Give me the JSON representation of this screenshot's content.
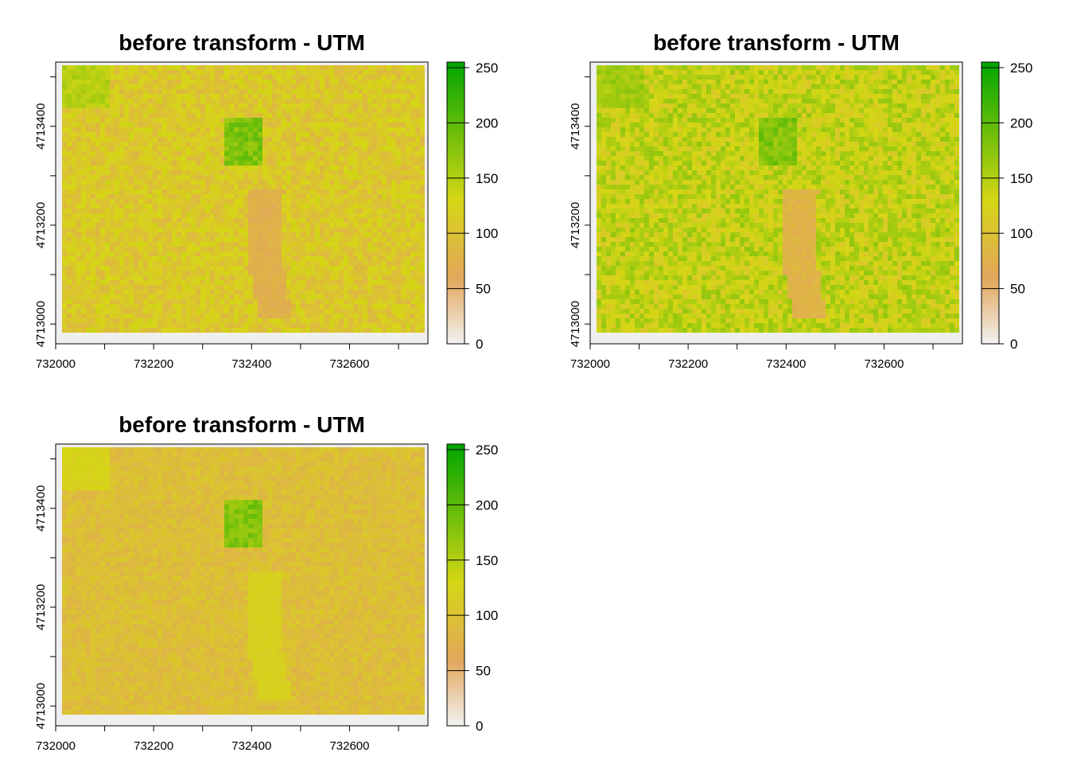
{
  "chart_data": [
    {
      "type": "heatmap",
      "title": "before transform - UTM",
      "xlabel": "",
      "ylabel": "",
      "xlim": [
        732000,
        732760
      ],
      "ylim": [
        4712960,
        4713530
      ],
      "x_ticks": [
        "732000",
        "732200",
        "732400",
        "732600"
      ],
      "y_ticks": [
        "4713000",
        "4713200",
        "4713400"
      ],
      "colorbar": {
        "range": [
          0,
          255
        ],
        "ticks": [
          "0",
          "50",
          "100",
          "150",
          "200",
          "250"
        ]
      },
      "value_summary": {
        "typical": 110,
        "spread": 25,
        "bright_corner": 150,
        "dark_patch_near_x": 732450,
        "dark_patch_value": 75
      },
      "colors": {
        "low": "#f2f2f2",
        "mid": "#e2a65b",
        "high_mid": "#d6d615",
        "high": "#00a600"
      }
    },
    {
      "type": "heatmap",
      "title": "before transform - UTM",
      "xlabel": "",
      "ylabel": "",
      "xlim": [
        732000,
        732760
      ],
      "ylim": [
        4712960,
        4713530
      ],
      "x_ticks": [
        "732000",
        "732200",
        "732400",
        "732600"
      ],
      "y_ticks": [
        "4713000",
        "4713200",
        "4713400"
      ],
      "colorbar": {
        "range": [
          0,
          255
        ],
        "ticks": [
          "0",
          "50",
          "100",
          "150",
          "200",
          "250"
        ]
      },
      "value_summary": {
        "typical": 140,
        "spread": 30,
        "bright_corner": 160,
        "dark_patch_near_x": 732450,
        "dark_patch_value": 80
      },
      "colors": {
        "low": "#f2f2f2",
        "mid": "#e2a65b",
        "high_mid": "#d6d615",
        "high": "#00a600"
      }
    },
    {
      "type": "heatmap",
      "title": "before transform - UTM",
      "xlabel": "",
      "ylabel": "",
      "xlim": [
        732000,
        732760
      ],
      "ylim": [
        4712960,
        4713530
      ],
      "x_ticks": [
        "732000",
        "732200",
        "732400",
        "732600"
      ],
      "y_ticks": [
        "4713000",
        "4713200",
        "4713400"
      ],
      "colorbar": {
        "range": [
          0,
          255
        ],
        "ticks": [
          "0",
          "50",
          "100",
          "150",
          "200",
          "250"
        ]
      },
      "value_summary": {
        "typical": 95,
        "spread": 15,
        "bright_corner": 125,
        "dark_patch_near_x": 732450,
        "dark_patch_value": 120
      },
      "colors": {
        "low": "#f2f2f2",
        "mid": "#e2a65b",
        "high_mid": "#d6d615",
        "high": "#00a600"
      }
    }
  ]
}
